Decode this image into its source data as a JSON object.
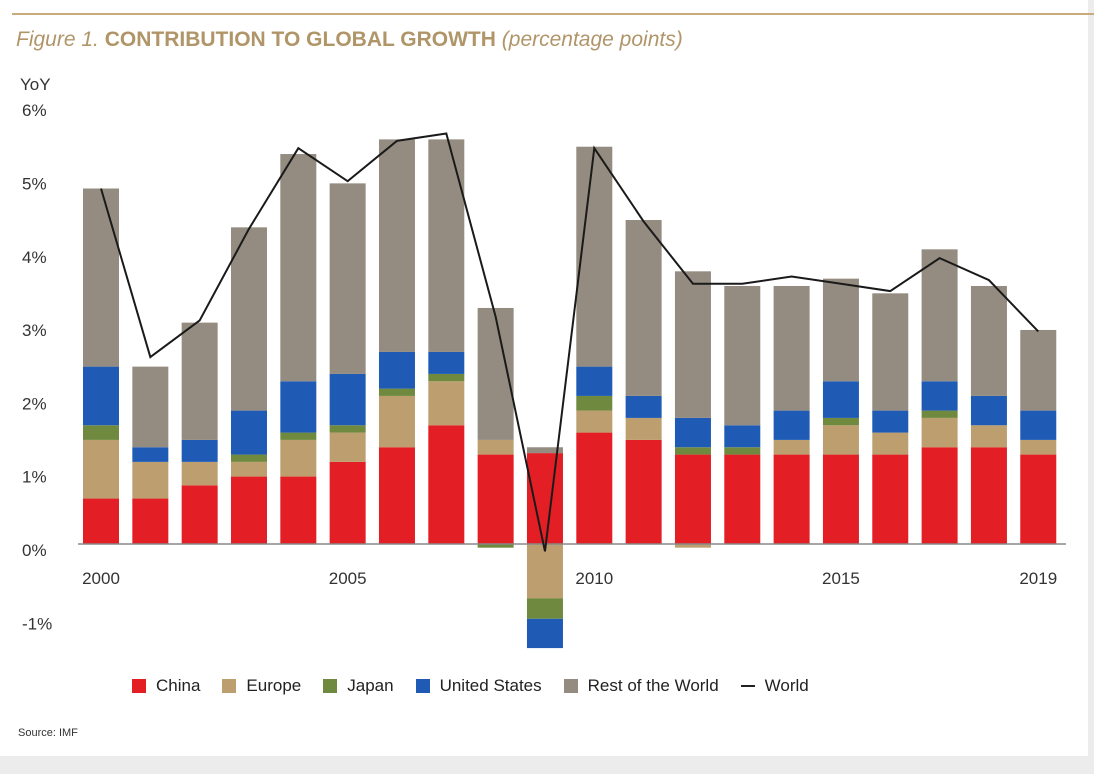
{
  "title": {
    "figure": "Figure 1.",
    "main": "CONTRIBUTION TO GLOBAL GROWTH",
    "unit": "(percentage points)"
  },
  "source": "Source: IMF",
  "chart_data": {
    "type": "bar",
    "stacked": true,
    "ylabel": "YoY",
    "ylim": [
      -1.4,
      6
    ],
    "yticks": [
      -1,
      0,
      1,
      2,
      3,
      4,
      5,
      6
    ],
    "ytick_labels": [
      "-1%",
      "0%",
      "1%",
      "2%",
      "3%",
      "4%",
      "5%",
      "6%"
    ],
    "xtick_labels": {
      "2000": "2000",
      "2005": "2005",
      "2010": "2010",
      "2015": "2015",
      "2019": "2019"
    },
    "categories": [
      2000,
      2001,
      2002,
      2003,
      2004,
      2005,
      2006,
      2007,
      2008,
      2009,
      2010,
      2011,
      2012,
      2013,
      2014,
      2015,
      2016,
      2017,
      2018,
      2019
    ],
    "series": [
      {
        "name": "China",
        "color": "#e31e24",
        "values": [
          0.62,
          0.62,
          0.8,
          0.92,
          0.92,
          1.12,
          1.32,
          1.62,
          1.22,
          1.24,
          1.52,
          1.42,
          1.22,
          1.22,
          1.22,
          1.22,
          1.22,
          1.32,
          1.32,
          1.22
        ]
      },
      {
        "name": "Europe",
        "color": "#bd9f6f",
        "values": [
          0.8,
          0.5,
          0.32,
          0.2,
          0.5,
          0.4,
          0.7,
          0.6,
          0.2,
          -0.74,
          0.3,
          0.3,
          -0.05,
          0,
          0.2,
          0.4,
          0.3,
          0.4,
          0.3,
          0.2
        ]
      },
      {
        "name": "Japan",
        "color": "#6f8a3f",
        "values": [
          0.2,
          0,
          0,
          0.1,
          0.1,
          0.1,
          0.1,
          0.1,
          -0.05,
          -0.28,
          0.2,
          0,
          0.1,
          0.1,
          0,
          0.1,
          0,
          0.1,
          0,
          0
        ]
      },
      {
        "name": "United States",
        "color": "#1f5bb5",
        "values": [
          0.8,
          0.2,
          0.3,
          0.6,
          0.7,
          0.7,
          0.5,
          0.3,
          0,
          -0.4,
          0.4,
          0.3,
          0.4,
          0.3,
          0.4,
          0.5,
          0.3,
          0.4,
          0.4,
          0.4
        ]
      },
      {
        "name": "Rest of the World",
        "color": "#948c80",
        "values": [
          2.43,
          1.1,
          1.6,
          2.5,
          3.1,
          2.6,
          2.9,
          2.9,
          1.8,
          0.08,
          3.0,
          2.4,
          2.0,
          1.9,
          1.7,
          1.4,
          1.6,
          1.8,
          1.5,
          1.1
        ]
      }
    ],
    "line": {
      "name": "World",
      "color": "#1a1a1a",
      "values": [
        4.85,
        2.55,
        3.05,
        4.3,
        5.4,
        4.95,
        5.5,
        5.6,
        3.1,
        -0.1,
        5.4,
        4.4,
        3.55,
        3.55,
        3.65,
        3.55,
        3.45,
        3.9,
        3.6,
        2.9
      ]
    },
    "legend_position": "bottom"
  }
}
